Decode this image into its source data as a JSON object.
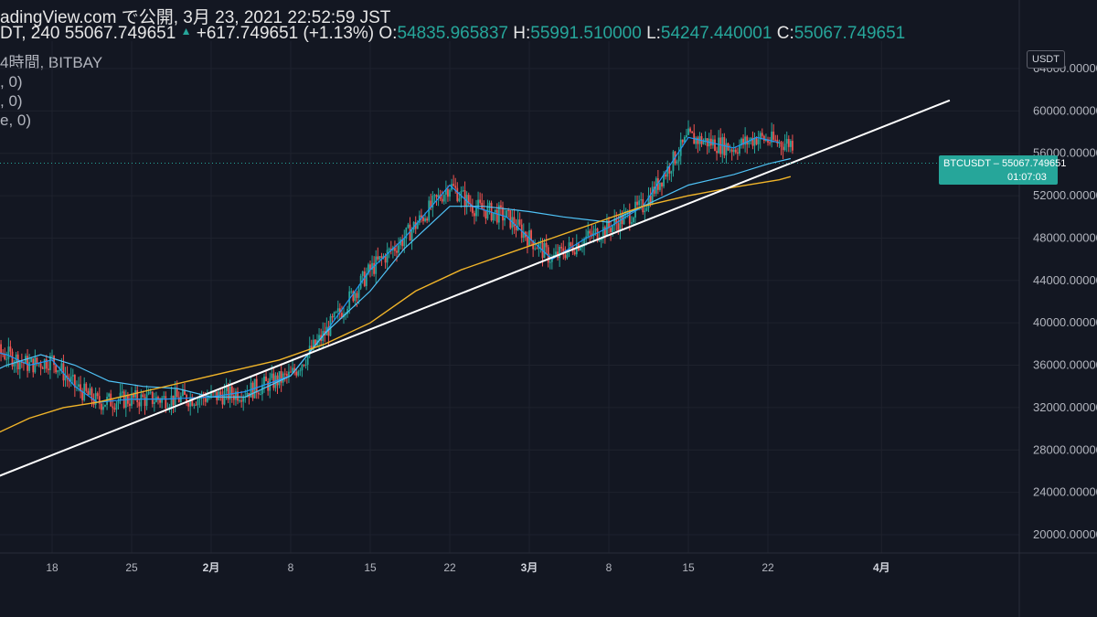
{
  "header": {
    "published": "adingView.com で公開, 3月 23, 2021 22:52:59 JST",
    "symbol_prefix": "DT, 240 ",
    "last": "55067.749651",
    "change": "+617.749651 (+1.13%)",
    "o_label": "O:",
    "o_value": "54835.965837",
    "h_label": "H:",
    "h_value": "55991.510000",
    "l_label": "L:",
    "l_value": "54247.440001",
    "c_label": "C:",
    "c_value": "55067.749651"
  },
  "legend": {
    "line1": "4時間, BITBAY",
    "line2": ", 0)",
    "line3": ", 0)",
    "line4": "e, 0)"
  },
  "price_axis": {
    "currency": "USDT",
    "ticks": [
      "64000.000000",
      "60000.000000",
      "56000.000000",
      "52000.000000",
      "48000.000000",
      "44000.000000",
      "40000.000000",
      "36000.000000",
      "32000.000000",
      "28000.000000",
      "24000.000000",
      "20000.000000"
    ]
  },
  "time_axis": {
    "ticks": [
      "18",
      "25",
      "2月",
      "8",
      "15",
      "22",
      "3月",
      "8",
      "15",
      "22",
      "4月"
    ]
  },
  "price_tag": {
    "symbol": "BTCUSDT",
    "price": "55067.749651",
    "countdown": "01:07:03"
  },
  "colors": {
    "background": "#131722",
    "up": "#26a69a",
    "down": "#ef5350",
    "ma_fast": "#2196f3",
    "ma_mid": "#4fc3f7",
    "ma_slow": "#f0b429",
    "trendline": "#ffffff"
  },
  "chart_data": {
    "type": "line",
    "title": "",
    "ylim": [
      18000,
      66000
    ],
    "y_ticks": [
      20000,
      24000,
      28000,
      32000,
      36000,
      40000,
      44000,
      48000,
      52000,
      56000,
      60000,
      64000
    ],
    "x_range_days": [
      10,
      87
    ],
    "x_tick_days": [
      18,
      25,
      32,
      39,
      46,
      53,
      60,
      67,
      74,
      81,
      91
    ],
    "series": [
      {
        "points": [
          [
            10,
            35000
          ],
          [
            12,
            37500
          ],
          [
            14,
            37000
          ],
          [
            16,
            36000
          ],
          [
            18,
            36500
          ],
          [
            20,
            34000
          ],
          [
            22,
            32500
          ],
          [
            25,
            32800
          ],
          [
            28,
            32800
          ],
          [
            32,
            33000
          ],
          [
            35,
            33500
          ],
          [
            39,
            35000
          ],
          [
            42,
            39000
          ],
          [
            46,
            45000
          ],
          [
            49,
            48000
          ],
          [
            53,
            53000
          ],
          [
            55,
            51000
          ],
          [
            58,
            50000
          ],
          [
            62,
            46000
          ],
          [
            65,
            48000
          ],
          [
            67,
            49000
          ],
          [
            70,
            51000
          ],
          [
            74,
            57500
          ],
          [
            76,
            57000
          ],
          [
            78,
            56500
          ],
          [
            80,
            57500
          ],
          [
            82,
            57000
          ]
        ]
      },
      {
        "points": [
          [
            10,
            34000
          ],
          [
            12,
            35000
          ],
          [
            14,
            36000
          ],
          [
            17,
            37000
          ],
          [
            20,
            36000
          ],
          [
            23,
            34500
          ],
          [
            26,
            34000
          ],
          [
            29,
            33800
          ],
          [
            32,
            33000
          ],
          [
            35,
            33000
          ],
          [
            39,
            35000
          ],
          [
            42,
            39000
          ],
          [
            46,
            43000
          ],
          [
            49,
            47000
          ],
          [
            53,
            51000
          ],
          [
            56,
            51000
          ],
          [
            60,
            50500
          ],
          [
            63,
            50000
          ],
          [
            67,
            49500
          ],
          [
            70,
            51000
          ],
          [
            74,
            53000
          ],
          [
            78,
            54000
          ],
          [
            81,
            55000
          ],
          [
            83,
            55500
          ]
        ]
      },
      {
        "points": [
          [
            10,
            27000
          ],
          [
            13,
            29500
          ],
          [
            16,
            31000
          ],
          [
            19,
            32000
          ],
          [
            22,
            32500
          ],
          [
            26,
            33500
          ],
          [
            30,
            34500
          ],
          [
            34,
            35500
          ],
          [
            38,
            36500
          ],
          [
            42,
            38000
          ],
          [
            46,
            40000
          ],
          [
            50,
            43000
          ],
          [
            54,
            45000
          ],
          [
            58,
            46500
          ],
          [
            62,
            48000
          ],
          [
            66,
            49500
          ],
          [
            70,
            51000
          ],
          [
            74,
            52000
          ],
          [
            78,
            52800
          ],
          [
            82,
            53500
          ],
          [
            83,
            53800
          ]
        ]
      },
      {
        "points": [
          [
            13,
            25400
          ],
          [
            97,
            61000
          ]
        ]
      }
    ],
    "candles_ohlc_summary": "4h candles BTC/USDT from ~Jan 12 to Mar 23 2021",
    "last_price": 55067.749651
  }
}
